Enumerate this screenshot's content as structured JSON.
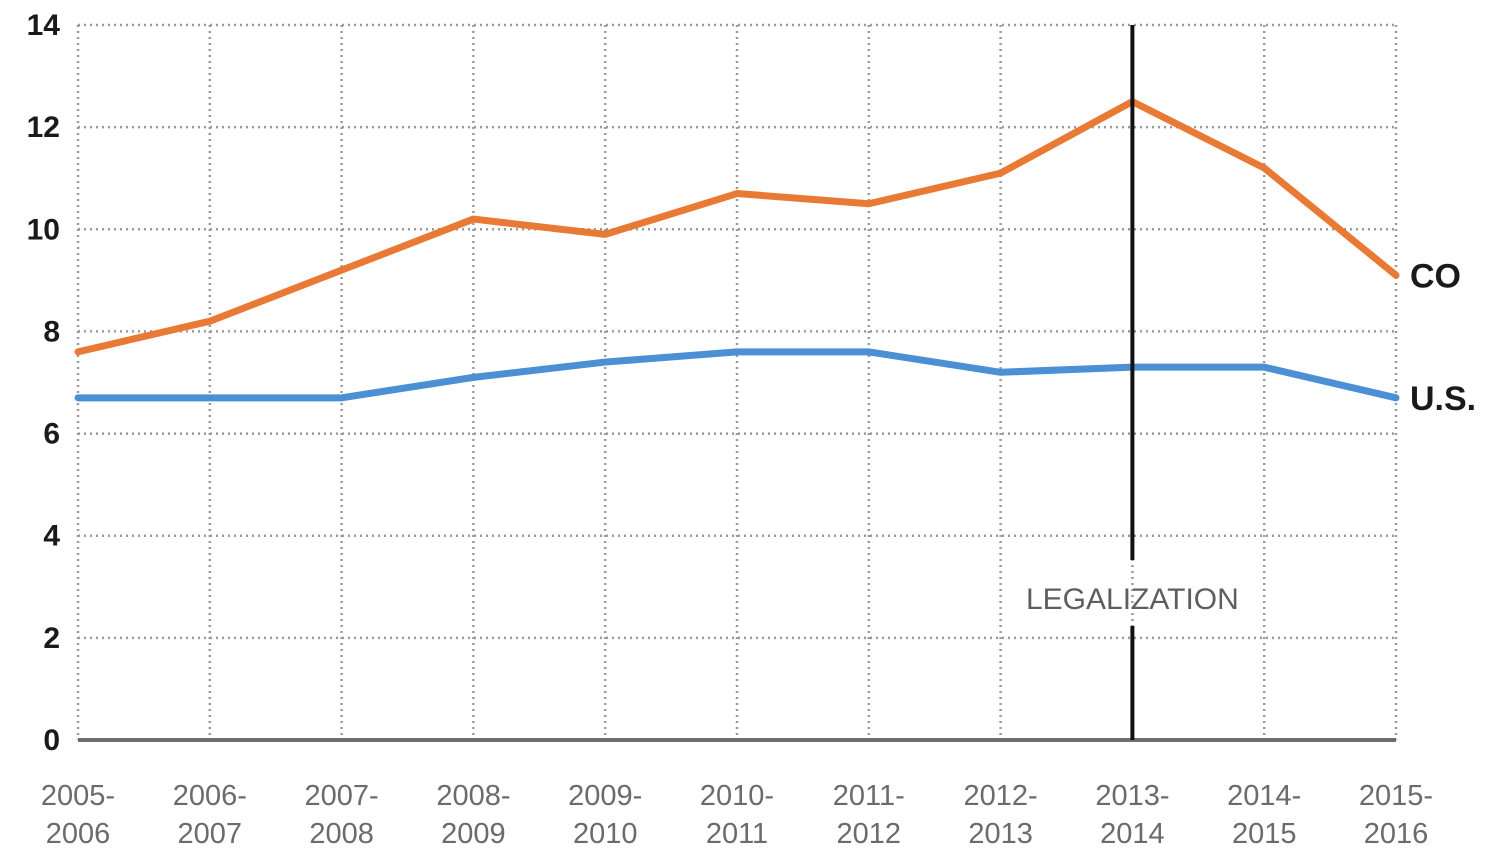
{
  "chart_data": {
    "type": "line",
    "title": "",
    "xlabel": "",
    "ylabel": "",
    "ylim": [
      0,
      14
    ],
    "yticks": [
      "0",
      "2",
      "4",
      "6",
      "8",
      "10",
      "12",
      "14"
    ],
    "categories": [
      [
        "2005-",
        "2006"
      ],
      [
        "2006-",
        "2007"
      ],
      [
        "2007-",
        "2008"
      ],
      [
        "2008-",
        "2009"
      ],
      [
        "2009-",
        "2010"
      ],
      [
        "2010-",
        "2011"
      ],
      [
        "2011-",
        "2012"
      ],
      [
        "2012-",
        "2013"
      ],
      [
        "2013-",
        "2014"
      ],
      [
        "2014-",
        "2015"
      ],
      [
        "2015-",
        "2016"
      ]
    ],
    "series": [
      {
        "name": "CO",
        "color": "#e87a35",
        "values": [
          7.6,
          8.2,
          9.2,
          10.2,
          9.9,
          10.7,
          10.5,
          11.1,
          12.5,
          11.2,
          9.1
        ]
      },
      {
        "name": "U.S.",
        "color": "#4b8fd4",
        "values": [
          6.7,
          6.7,
          6.7,
          7.1,
          7.4,
          7.6,
          7.6,
          7.2,
          7.3,
          7.3,
          6.7
        ]
      }
    ],
    "grid": true,
    "annotations": [
      {
        "text": "LEGALIZATION",
        "category_index": 8
      }
    ]
  }
}
